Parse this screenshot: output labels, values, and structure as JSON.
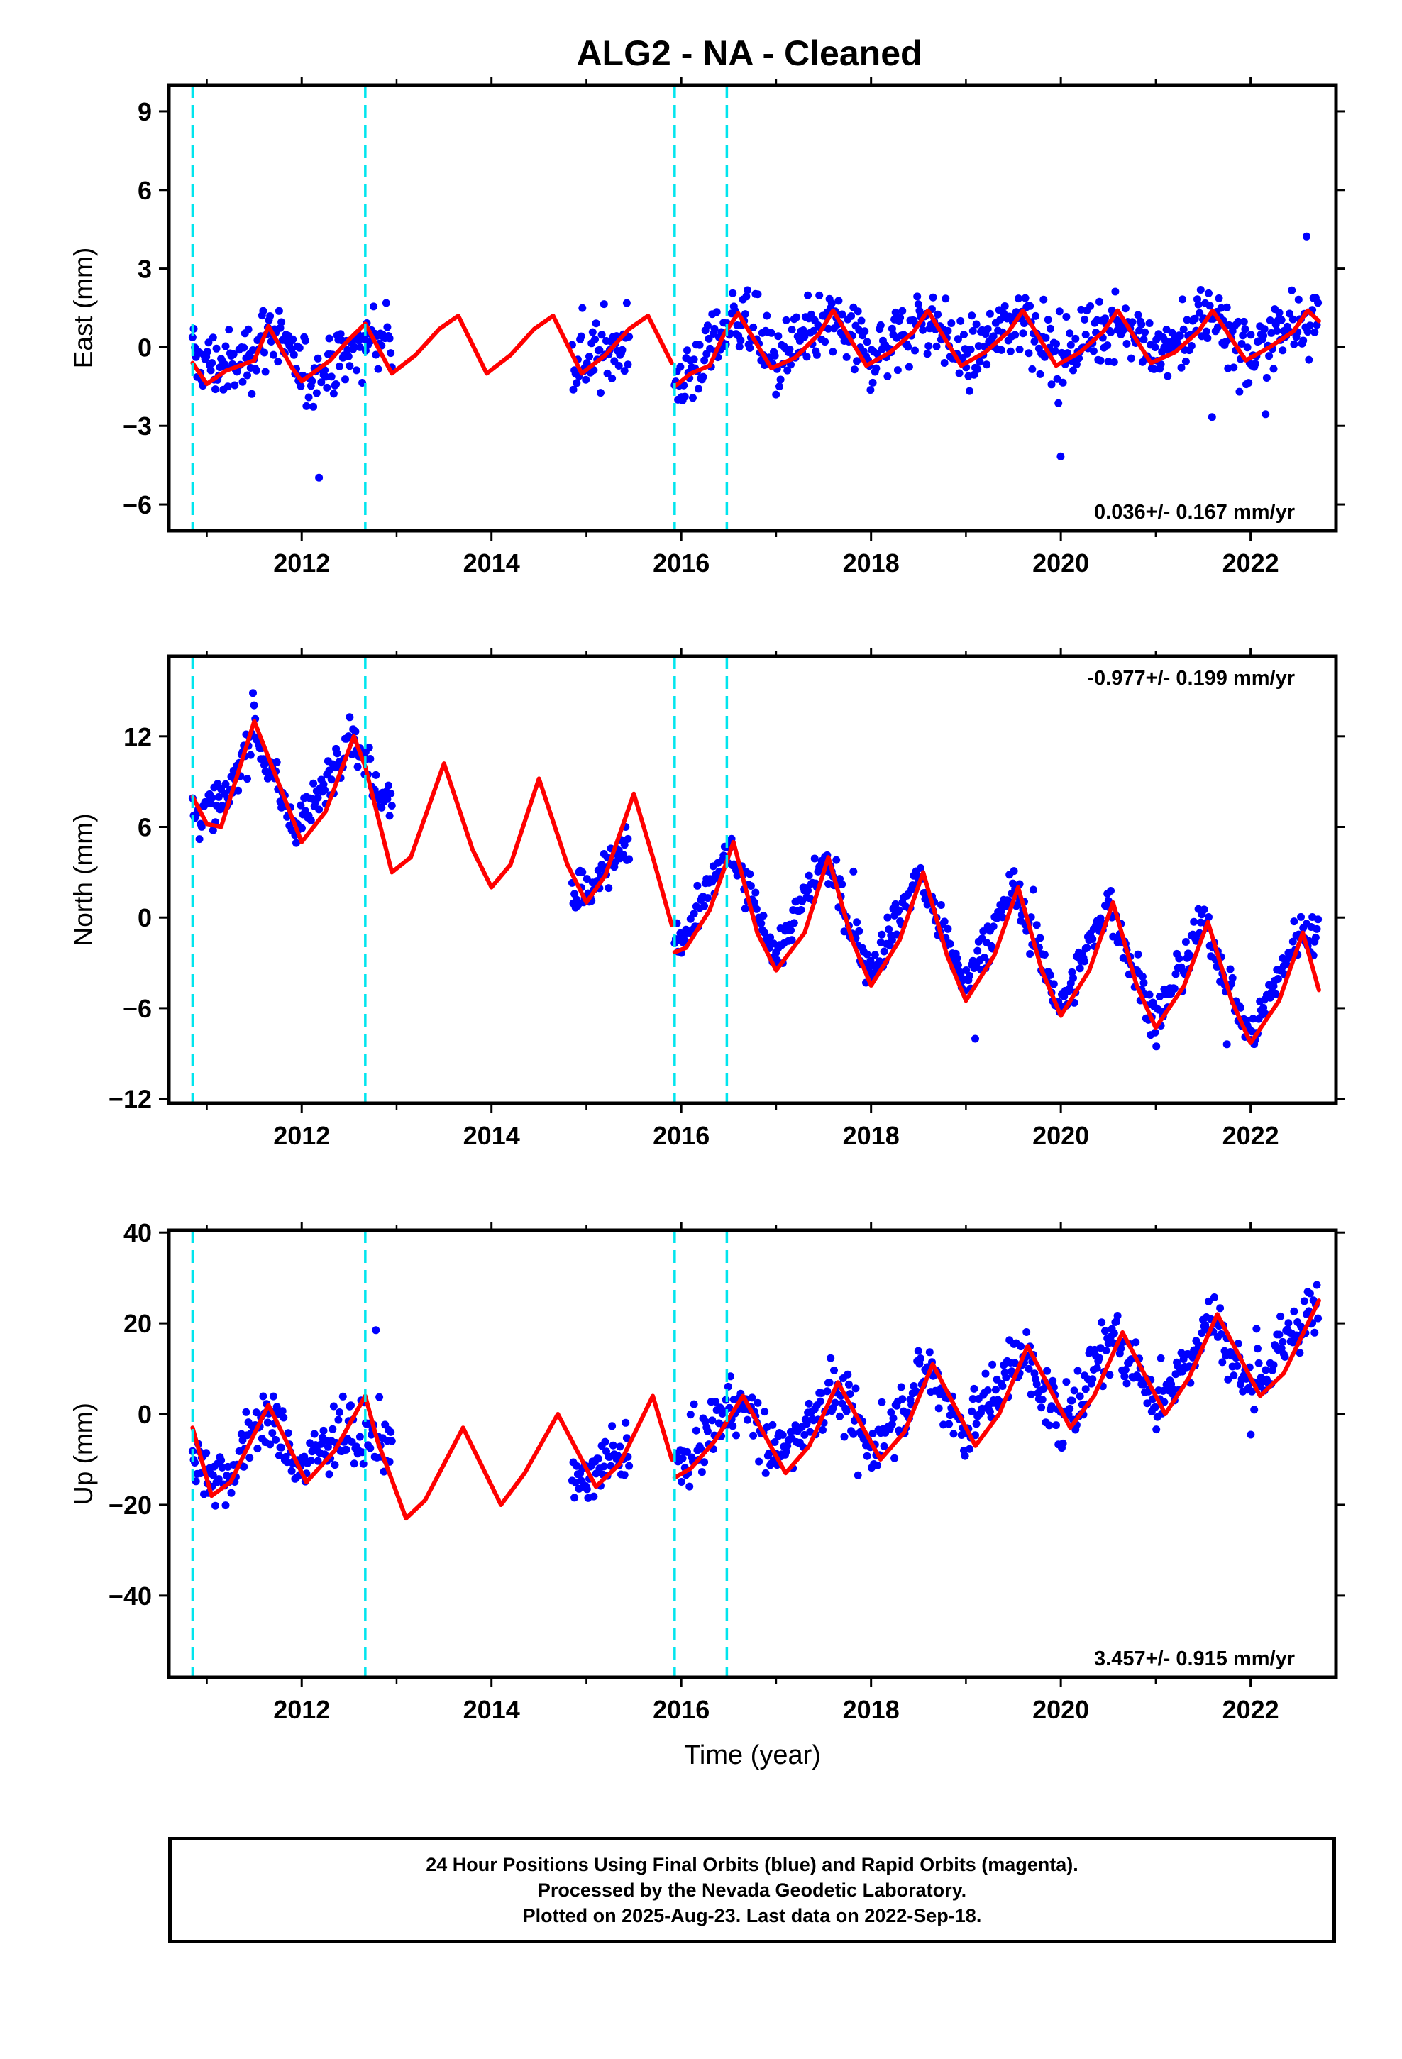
{
  "title": "ALG2  - NA - Cleaned",
  "colors": {
    "data_points": "#0000ff",
    "model_curve": "#ff0000",
    "offset_lines": "#00e5ee",
    "frame": "#000000"
  },
  "chart_data": [
    {
      "type": "scatter",
      "panel": "East",
      "ylabel": "East (mm)",
      "xlabel": "",
      "xlim": [
        2010.6,
        2022.9
      ],
      "ylim": [
        -7,
        10
      ],
      "yticks": [
        -6,
        -3,
        0,
        3,
        6,
        9
      ],
      "ytick_labels": [
        "−6",
        "−3",
        "0",
        "3",
        "6",
        "9"
      ],
      "xticks": [
        2012,
        2014,
        2016,
        2018,
        2020,
        2022
      ],
      "xtick_labels": [
        "2012",
        "2014",
        "2016",
        "2018",
        "2020",
        "2022"
      ],
      "rate_label": "0.036+/- 0.167 mm/yr",
      "rate_position": "bottom-right",
      "offset_epochs": [
        2010.85,
        2012.67,
        2015.93,
        2016.48
      ],
      "data_segments": [
        [
          2010.85,
          2012.95
        ],
        [
          2014.85,
          2015.45
        ],
        [
          2015.93,
          2022.72
        ]
      ],
      "series": [
        {
          "name": "Final Orbits",
          "kind": "points",
          "x": [
            2010.9,
            2011.3,
            2011.7,
            2012.0,
            2012.4,
            2012.8,
            2015.0,
            2015.4,
            2016.0,
            2016.6,
            2017.0,
            2017.6,
            2018.0,
            2018.6,
            2019.0,
            2019.6,
            2020.0,
            2020.6,
            2021.0,
            2021.6,
            2022.0,
            2022.6
          ],
          "y": [
            -0.5,
            -0.8,
            0.8,
            -1.2,
            -0.5,
            0.5,
            -0.5,
            0.2,
            -1.3,
            1.2,
            -0.5,
            1.0,
            -0.3,
            1.2,
            -0.5,
            1.3,
            -0.5,
            1.3,
            -0.4,
            1.3,
            -0.3,
            1.3
          ],
          "scatter_sd": 1.2
        },
        {
          "name": "Model",
          "kind": "line",
          "x": [
            2010.85,
            2011.0,
            2011.2,
            2011.5,
            2011.65,
            2011.9,
            2012.0,
            2012.3,
            2012.5,
            2012.67,
            2012.95,
            2013.2,
            2013.45,
            2013.65,
            2013.95,
            2014.2,
            2014.45,
            2014.65,
            2014.95,
            2015.2,
            2015.45,
            2015.65,
            2015.9
          ],
          "y": [
            -0.6,
            -1.4,
            -0.9,
            -0.5,
            0.8,
            -0.8,
            -1.3,
            -0.5,
            0.3,
            0.9,
            -1.0,
            -0.3,
            0.7,
            1.2,
            -1.0,
            -0.3,
            0.7,
            1.2,
            -1.0,
            -0.3,
            0.7,
            1.2,
            -0.6
          ]
        },
        {
          "name": "Model",
          "kind": "line",
          "x": [
            2015.93,
            2016.1,
            2016.3,
            2016.45,
            2016.6,
            2016.95,
            2017.2,
            2017.45,
            2017.6,
            2017.95,
            2018.2,
            2018.45,
            2018.6,
            2018.95,
            2019.2,
            2019.45,
            2019.6,
            2019.95,
            2020.2,
            2020.45,
            2020.6,
            2020.95,
            2021.2,
            2021.45,
            2021.6,
            2021.95,
            2022.2,
            2022.45,
            2022.6,
            2022.72
          ],
          "y": [
            -1.5,
            -1.0,
            -0.7,
            0.5,
            1.3,
            -0.8,
            -0.4,
            0.5,
            1.4,
            -0.7,
            -0.2,
            0.6,
            1.4,
            -0.7,
            -0.2,
            0.6,
            1.4,
            -0.7,
            -0.2,
            0.6,
            1.4,
            -0.6,
            -0.2,
            0.6,
            1.4,
            -0.5,
            0.0,
            0.6,
            1.4,
            1.0
          ]
        }
      ]
    },
    {
      "type": "scatter",
      "panel": "North",
      "ylabel": "North (mm)",
      "xlabel": "",
      "xlim": [
        2010.6,
        2022.9
      ],
      "ylim": [
        -12.3,
        17.3
      ],
      "yticks": [
        -12,
        -6,
        0,
        6,
        12
      ],
      "ytick_labels": [
        "−12",
        "−6",
        "0",
        "6",
        "12"
      ],
      "xticks": [
        2012,
        2014,
        2016,
        2018,
        2020,
        2022
      ],
      "xtick_labels": [
        "2012",
        "2014",
        "2016",
        "2018",
        "2020",
        "2022"
      ],
      "rate_label": "-0.977+/- 0.199 mm/yr",
      "rate_position": "top-right",
      "offset_epochs": [
        2010.85,
        2012.67,
        2015.93,
        2016.48
      ],
      "data_segments": [
        [
          2010.85,
          2012.95
        ],
        [
          2014.85,
          2015.45
        ],
        [
          2015.93,
          2022.72
        ]
      ],
      "series": [
        {
          "name": "Final Orbits",
          "kind": "points",
          "x": [
            2010.9,
            2011.2,
            2011.5,
            2011.9,
            2012.2,
            2012.5,
            2012.8,
            2015.0,
            2015.4,
            2016.0,
            2016.5,
            2017.0,
            2017.5,
            2018.0,
            2018.5,
            2019.0,
            2019.5,
            2020.0,
            2020.5,
            2021.0,
            2021.5,
            2022.0,
            2022.5
          ],
          "y": [
            7.0,
            7.5,
            12.5,
            6.0,
            8.0,
            12.5,
            8.5,
            1.5,
            5.0,
            -2.0,
            4.5,
            -2.5,
            3.8,
            -3.5,
            2.8,
            -4.5,
            2.0,
            -6.0,
            1.0,
            -7.0,
            -0.2,
            -8.0,
            -1.0
          ],
          "scatter_sd": 1.3
        },
        {
          "name": "Model",
          "kind": "line",
          "x": [
            2010.85,
            2011.0,
            2011.15,
            2011.5,
            2011.75,
            2012.0,
            2012.25,
            2012.55,
            2012.67,
            2012.95,
            2013.15,
            2013.5,
            2013.8,
            2014.0,
            2014.2,
            2014.5,
            2014.8,
            2015.0,
            2015.2,
            2015.5,
            2015.7,
            2015.9
          ],
          "y": [
            8.0,
            6.2,
            6.0,
            13.0,
            9.0,
            5.0,
            7.0,
            12.0,
            10.0,
            3.0,
            4.0,
            10.2,
            4.5,
            2.0,
            3.5,
            9.2,
            3.5,
            1.0,
            2.8,
            8.2,
            4.0,
            -0.5
          ]
        },
        {
          "name": "Model",
          "kind": "line",
          "x": [
            2015.93,
            2016.05,
            2016.3,
            2016.55,
            2016.8,
            2017.0,
            2017.3,
            2017.55,
            2017.8,
            2018.0,
            2018.3,
            2018.55,
            2018.8,
            2019.0,
            2019.3,
            2019.55,
            2019.8,
            2020.0,
            2020.3,
            2020.55,
            2020.8,
            2021.0,
            2021.3,
            2021.55,
            2021.8,
            2022.0,
            2022.3,
            2022.55,
            2022.72
          ],
          "y": [
            -2.3,
            -2.0,
            0.5,
            5.0,
            -1.0,
            -3.5,
            -1.0,
            4.0,
            -1.5,
            -4.5,
            -1.5,
            3.0,
            -2.5,
            -5.5,
            -2.5,
            2.0,
            -3.5,
            -6.5,
            -3.5,
            1.0,
            -4.5,
            -7.3,
            -4.5,
            -0.3,
            -5.5,
            -8.3,
            -5.5,
            -1.0,
            -4.8
          ]
        }
      ]
    },
    {
      "type": "scatter",
      "panel": "Up",
      "ylabel": "Up (mm)",
      "xlabel": "Time (year)",
      "xlim": [
        2010.6,
        2022.9
      ],
      "ylim": [
        -58,
        40.5
      ],
      "yticks": [
        -40,
        -20,
        0,
        20,
        40
      ],
      "ytick_labels": [
        "−40",
        "−20",
        "0",
        "20",
        "40"
      ],
      "xticks": [
        2012,
        2014,
        2016,
        2018,
        2020,
        2022
      ],
      "xtick_labels": [
        "2012",
        "2014",
        "2016",
        "2018",
        "2020",
        "2022"
      ],
      "rate_label": "3.457+/- 0.915 mm/yr",
      "rate_position": "bottom-right",
      "offset_epochs": [
        2010.85,
        2012.67,
        2015.93,
        2016.48
      ],
      "data_segments": [
        [
          2010.85,
          2012.95
        ],
        [
          2014.85,
          2015.45
        ],
        [
          2015.93,
          2022.72
        ]
      ],
      "series": [
        {
          "name": "Final Orbits",
          "kind": "points",
          "x": [
            2010.9,
            2011.2,
            2011.6,
            2012.0,
            2012.4,
            2012.8,
            2015.0,
            2015.4,
            2016.0,
            2016.6,
            2017.0,
            2017.6,
            2018.0,
            2018.6,
            2019.0,
            2019.6,
            2020.0,
            2020.6,
            2021.0,
            2021.6,
            2022.0,
            2022.6
          ],
          "y": [
            -10,
            -15,
            0,
            -12,
            -4,
            -5,
            -15,
            -8,
            -12,
            4,
            -10,
            6,
            -8,
            10,
            -4,
            14,
            -2,
            17,
            2,
            21,
            5,
            22
          ],
          "scatter_sd": 6.0
        },
        {
          "name": "Model",
          "kind": "line",
          "x": [
            2010.85,
            2011.05,
            2011.25,
            2011.65,
            2012.05,
            2012.35,
            2012.67,
            2012.8,
            2013.1,
            2013.3,
            2013.7,
            2014.1,
            2014.35,
            2014.7,
            2015.1,
            2015.35,
            2015.7,
            2015.9
          ],
          "y": [
            -3,
            -18,
            -15,
            2,
            -15,
            -8,
            4,
            -6,
            -23,
            -19,
            -3,
            -20,
            -13,
            0,
            -16,
            -11,
            4,
            -10
          ]
        },
        {
          "name": "Model",
          "kind": "line",
          "x": [
            2015.93,
            2016.1,
            2016.35,
            2016.65,
            2017.1,
            2017.35,
            2017.65,
            2018.1,
            2018.35,
            2018.65,
            2019.1,
            2019.35,
            2019.65,
            2020.1,
            2020.35,
            2020.65,
            2021.1,
            2021.35,
            2021.65,
            2022.1,
            2022.35,
            2022.72
          ],
          "y": [
            -14,
            -12,
            -6,
            4,
            -13,
            -7,
            7,
            -10,
            -4,
            11,
            -7,
            0,
            15,
            -3,
            4,
            18,
            0,
            8,
            22,
            4,
            9,
            25
          ]
        }
      ]
    }
  ],
  "caption": {
    "line1": "24 Hour Positions Using Final Orbits (blue) and Rapid Orbits (magenta).",
    "line2": "Processed by the Nevada Geodetic Laboratory.",
    "line3": "Plotted on 2025-Aug-23. Last data on 2022-Sep-18."
  }
}
